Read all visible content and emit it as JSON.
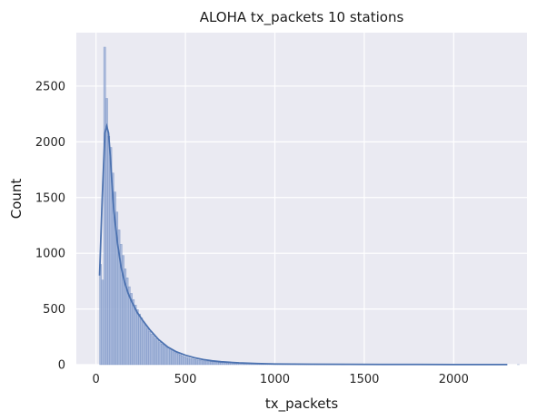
{
  "chart_data": {
    "type": "bar",
    "subtype": "histogram with kde line",
    "title": "ALOHA tx_packets 10 stations",
    "xlabel": "tx_packets",
    "ylabel": "Count",
    "xlim": [
      -110,
      2410
    ],
    "ylim": [
      0,
      2980
    ],
    "x_ticks": [
      0,
      500,
      1000,
      1500,
      2000
    ],
    "x_tick_labels": [
      "0",
      "500",
      "1000",
      "1500",
      "2000"
    ],
    "y_ticks": [
      0,
      500,
      1000,
      1500,
      2000,
      2500
    ],
    "y_tick_labels": [
      "0",
      "500",
      "1000",
      "1500",
      "2000",
      "2500"
    ],
    "grid": true,
    "legend": "none",
    "bin_width": 11.45,
    "bins_start": 20,
    "hist_values": [
      900,
      760,
      2850,
      2390,
      2050,
      1950,
      1720,
      1550,
      1370,
      1210,
      1080,
      980,
      860,
      780,
      700,
      640,
      585,
      535,
      495,
      455,
      420,
      385,
      355,
      325,
      300,
      275,
      255,
      235,
      215,
      200,
      185,
      175,
      160,
      150,
      135,
      125,
      115,
      105,
      97,
      88,
      80,
      72,
      66,
      60,
      55,
      51,
      47,
      44,
      41,
      38,
      35,
      33,
      31,
      29,
      27,
      25,
      23,
      22,
      20,
      19,
      17,
      16,
      15,
      14,
      13,
      12,
      11,
      10,
      9,
      9,
      8,
      8,
      7,
      7,
      6,
      6,
      5,
      5,
      5,
      4,
      4,
      4,
      4,
      3,
      3,
      3,
      3,
      3,
      2,
      2,
      2,
      2,
      2,
      2,
      2,
      2,
      2,
      1,
      1,
      1,
      1,
      1,
      1,
      1,
      1,
      1,
      1,
      1,
      1,
      1,
      1,
      1,
      1,
      1,
      1,
      1,
      1,
      1,
      1,
      1,
      1,
      1,
      1,
      1,
      1,
      0,
      0,
      0,
      0,
      1,
      0,
      0,
      0,
      0,
      0,
      0,
      0,
      0,
      0,
      0,
      0,
      0,
      0,
      1,
      0,
      0,
      0,
      0,
      0,
      0,
      0,
      0,
      0,
      0,
      0,
      0,
      0,
      0,
      0,
      0,
      0,
      0,
      0,
      0,
      0,
      0,
      0,
      0,
      0,
      0,
      0,
      0,
      0,
      0,
      0,
      0,
      0,
      0,
      0,
      0,
      0,
      0,
      0,
      0,
      0,
      0,
      0,
      0,
      0,
      0,
      0,
      0,
      0,
      0,
      0,
      0,
      0,
      0,
      0,
      0,
      0,
      0,
      0,
      0,
      1
    ],
    "kde_x": [
      20,
      35,
      50,
      60,
      70,
      80,
      90,
      100,
      120,
      140,
      160,
      180,
      200,
      230,
      260,
      300,
      350,
      400,
      450,
      500,
      550,
      600,
      650,
      700,
      800,
      900,
      1000,
      1200,
      1400,
      1600,
      1800,
      2000,
      2200,
      2300
    ],
    "kde_y": [
      800,
      1500,
      2080,
      2140,
      2080,
      1870,
      1610,
      1380,
      1090,
      880,
      740,
      640,
      565,
      470,
      400,
      315,
      225,
      160,
      115,
      85,
      62,
      46,
      34,
      26,
      16,
      10,
      6,
      4,
      3,
      2,
      2,
      1,
      1,
      1
    ],
    "colors": {
      "bar_fill": "#9fb2d8",
      "bar_edge": "#5f7fb8",
      "kde_line": "#4c72b0",
      "plot_bg": "#eaeaf2",
      "grid": "#ffffff"
    }
  }
}
